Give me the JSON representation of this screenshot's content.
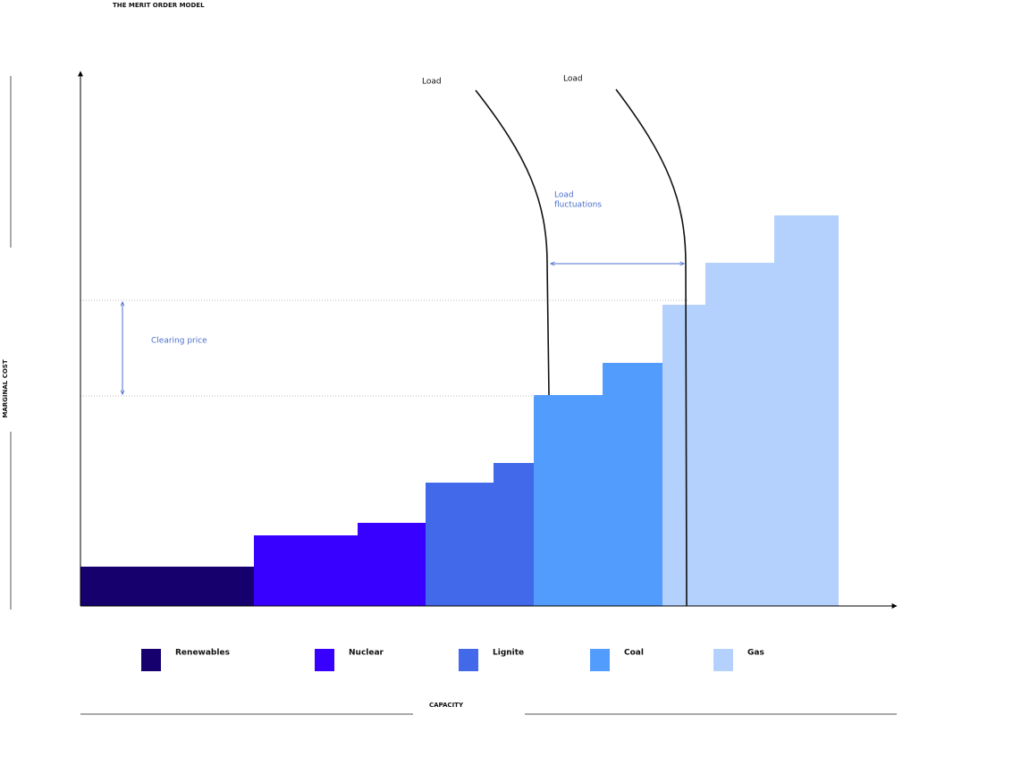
{
  "header": {
    "title": "THE MERIT ORDER MODEL"
  },
  "axes": {
    "y_label": "MARGINAL COST",
    "x_label": "CAPACITY"
  },
  "annotations": {
    "load_left": "Load",
    "load_right": "Load",
    "fluctuations": [
      "Load",
      "fluctuations"
    ],
    "clearing_price": "Clearing price"
  },
  "legend": [
    {
      "label": "Renewables",
      "color": "#15006e"
    },
    {
      "label": "Nuclear",
      "color": "#3700ff"
    },
    {
      "label": "Lignite",
      "color": "#4169e9"
    },
    {
      "label": "Coal",
      "color": "#529cfd"
    },
    {
      "label": "Gas",
      "color": "#b3d1fc"
    }
  ]
}
